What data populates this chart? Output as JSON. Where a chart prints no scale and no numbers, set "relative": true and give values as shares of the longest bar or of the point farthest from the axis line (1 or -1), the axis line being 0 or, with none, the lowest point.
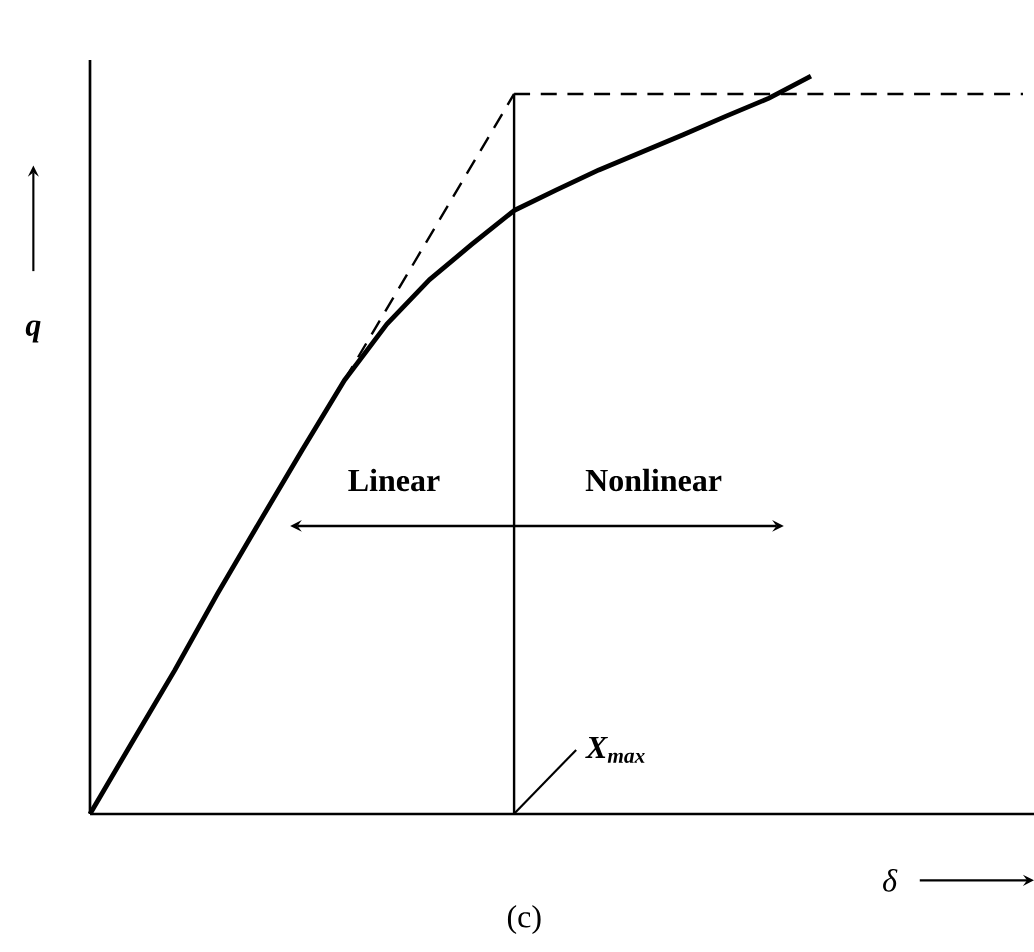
{
  "chart_data": {
    "type": "line",
    "relative": true,
    "xlabel": "δ",
    "ylabel": "q",
    "categories": [
      null,
      null,
      null,
      null,
      null,
      null,
      null,
      null,
      null,
      null,
      null,
      null,
      null,
      null,
      null,
      null,
      null,
      null,
      null,
      null,
      null,
      null,
      null
    ],
    "series": [
      {
        "color": "#000000",
        "line_style": "solid",
        "values": [
          0,
          0.098,
          0.195,
          0.298,
          0.396,
          0.493,
          0.588,
          0.664,
          0.724,
          0.772,
          0.818,
          0.846,
          0.873,
          0.897,
          0.921,
          0.946,
          0.97,
          1.0,
          null,
          null,
          null,
          null,
          null
        ]
      },
      {
        "color": "#000000",
        "line_style": "dashed",
        "values": [
          null,
          null,
          null,
          null,
          null,
          null,
          0.588,
          null,
          null,
          null,
          0.976,
          null,
          null,
          null,
          null,
          null,
          null,
          null,
          null,
          null,
          null,
          null,
          null
        ]
      },
      {
        "color": "#000000",
        "line_style": "dashed",
        "values": [
          null,
          null,
          null,
          null,
          null,
          null,
          null,
          null,
          null,
          null,
          0.976,
          0.976,
          0.976,
          0.976,
          0.976,
          0.976,
          0.976,
          0.976,
          0.976,
          0.976,
          0.976,
          0.976,
          0.976
        ]
      }
    ],
    "annotations": [
      "Linear",
      "Nonlinear",
      "X$_{max}$",
      "(c)"
    ]
  }
}
